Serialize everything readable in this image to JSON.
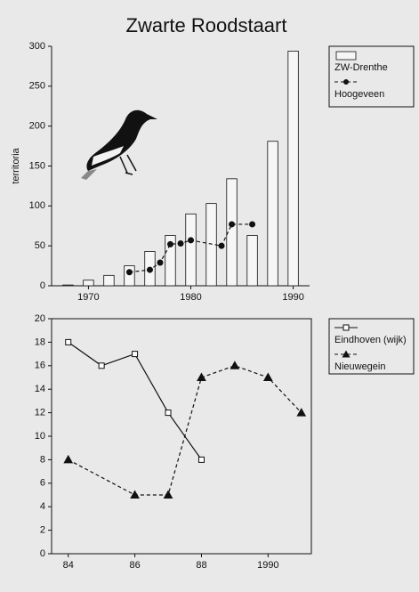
{
  "chart_data": [
    {
      "type": "bar",
      "title": "Zwarte Roodstaart",
      "ylabel": "territoria",
      "xlim": [
        1966.4,
        1991.6
      ],
      "xticks": [
        1970,
        1980,
        1990
      ],
      "ylim": [
        0,
        300
      ],
      "yticks": [
        0,
        50,
        100,
        150,
        200,
        250,
        300
      ],
      "legend": "right",
      "frame": false,
      "series": [
        {
          "name": "ZW-Drenthe",
          "type": "bar",
          "color": "#f6f6f6",
          "x": [
            1968,
            1970,
            1972,
            1974,
            1976,
            1978,
            1980,
            1982,
            1984,
            1986,
            1988,
            1990
          ],
          "values": [
            1,
            7,
            13,
            25,
            43,
            63,
            90,
            103,
            134,
            63,
            181,
            294
          ]
        },
        {
          "name": "Hoogeveen",
          "type": "line",
          "marker": "circle",
          "dashed": true,
          "color": "#111111",
          "x": [
            1974,
            1976,
            1977,
            1978,
            1979,
            1980,
            1983,
            1984,
            1986
          ],
          "values": [
            17,
            20,
            29,
            52,
            53,
            57,
            50,
            77,
            77
          ]
        }
      ]
    },
    {
      "type": "line",
      "xlim": [
        1983.5,
        1991.3
      ],
      "xticks": [
        {
          "value": 1984,
          "label": "84"
        },
        {
          "value": 1986,
          "label": "86"
        },
        {
          "value": 1988,
          "label": "88"
        },
        1990
      ],
      "ylim": [
        0,
        20
      ],
      "yticks": [
        0,
        2,
        4,
        6,
        8,
        10,
        12,
        14,
        16,
        18,
        20
      ],
      "legend": "right",
      "frame": true,
      "series": [
        {
          "name": "Eindhoven (wijk)",
          "type": "line",
          "marker": "square",
          "dashed": false,
          "color": "#111111",
          "x": [
            1984,
            1985,
            1986,
            1987,
            1988
          ],
          "values": [
            18,
            16,
            17,
            12,
            8
          ]
        },
        {
          "name": "Nieuwegein",
          "type": "line",
          "marker": "triangle",
          "dashed": true,
          "color": "#111111",
          "x": [
            1984,
            1986,
            1987,
            1988,
            1989,
            1990,
            1991
          ],
          "values": [
            8,
            5,
            5,
            15,
            16,
            15,
            12
          ]
        }
      ]
    }
  ]
}
